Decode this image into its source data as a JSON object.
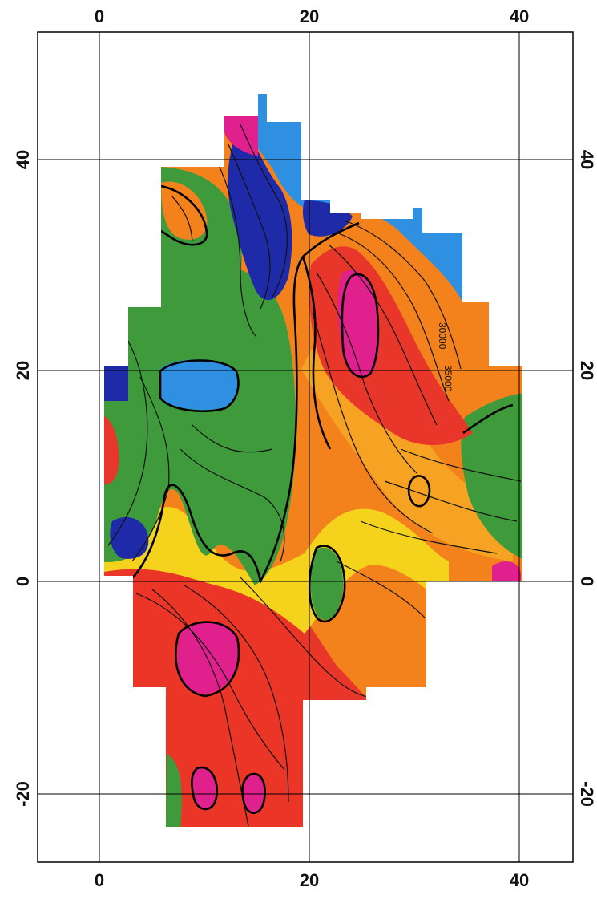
{
  "map": {
    "axes": {
      "top_ticks": [
        "0",
        "20",
        "40"
      ],
      "bottom_ticks": [
        "0",
        "20",
        "40"
      ],
      "left_ticks": [
        "40",
        "20",
        "0",
        "-20"
      ],
      "right_ticks": [
        "40",
        "20",
        "0",
        "-20"
      ]
    },
    "contour_labels": [
      "30000",
      "35000"
    ],
    "colors": {
      "magenta": "#e0208c",
      "red": "#e8372a",
      "orange": "#f3821d",
      "yellow": "#f5d21c",
      "green": "#3f9a3c",
      "light_blue": "#2f8fe0",
      "dark_blue": "#1e2aa8",
      "frame": "#000000",
      "background": "#ffffff"
    }
  }
}
